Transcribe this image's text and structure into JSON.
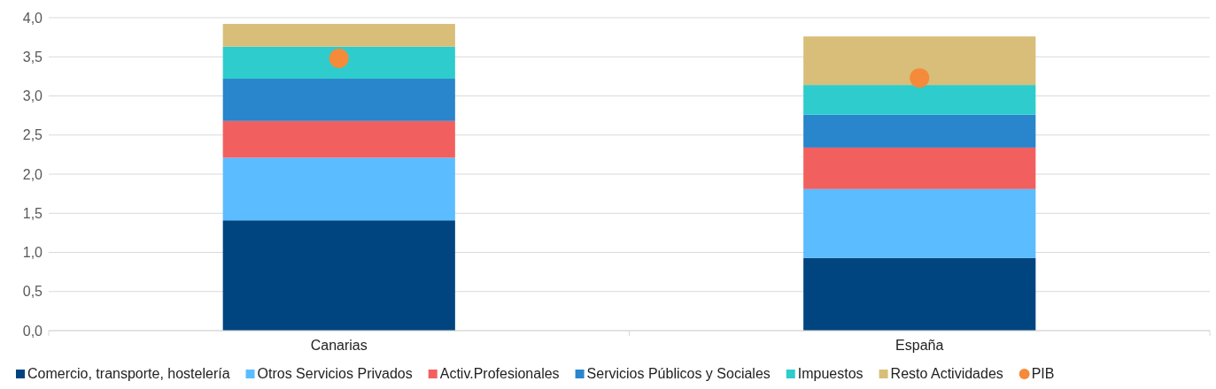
{
  "chart_data": {
    "type": "bar",
    "stacked": true,
    "categories": [
      "Canarias",
      "España"
    ],
    "series": [
      {
        "name": "Comercio, transporte, hostelería",
        "color": "#00457f",
        "values": [
          1.41,
          0.93
        ]
      },
      {
        "name": "Otros Servicios Privados",
        "color": "#5bbcff",
        "values": [
          0.8,
          0.88
        ]
      },
      {
        "name": "Activ.Profesionales",
        "color": "#f25f5f",
        "values": [
          0.47,
          0.53
        ]
      },
      {
        "name": "Servicios Públicos y Sociales",
        "color": "#2985cc",
        "values": [
          0.54,
          0.42
        ]
      },
      {
        "name": "Impuestos",
        "color": "#2ecccc",
        "values": [
          0.41,
          0.38
        ]
      },
      {
        "name": "Resto Actividades",
        "color": "#d8be78",
        "values": [
          0.29,
          0.62
        ]
      },
      {
        "name": "PIB",
        "type": "scatter",
        "color": "#f58a3a",
        "x": [
          "Canarias",
          "España"
        ],
        "values": [
          3.48,
          3.23
        ]
      }
    ],
    "ylim": [
      0,
      4
    ],
    "yticks": [
      {
        "value": 0,
        "label": "0,0"
      },
      {
        "value": 0.5,
        "label": "0,5"
      },
      {
        "value": 1,
        "label": "1,0"
      },
      {
        "value": 1.5,
        "label": "1,5"
      },
      {
        "value": 2,
        "label": "2,0"
      },
      {
        "value": 2.5,
        "label": "2,5"
      },
      {
        "value": 3,
        "label": "3,0"
      },
      {
        "value": 3.5,
        "label": "3,5"
      },
      {
        "value": 4,
        "label": "4,0"
      }
    ],
    "grid": "y",
    "legend": "bottom",
    "marker": "circle"
  }
}
